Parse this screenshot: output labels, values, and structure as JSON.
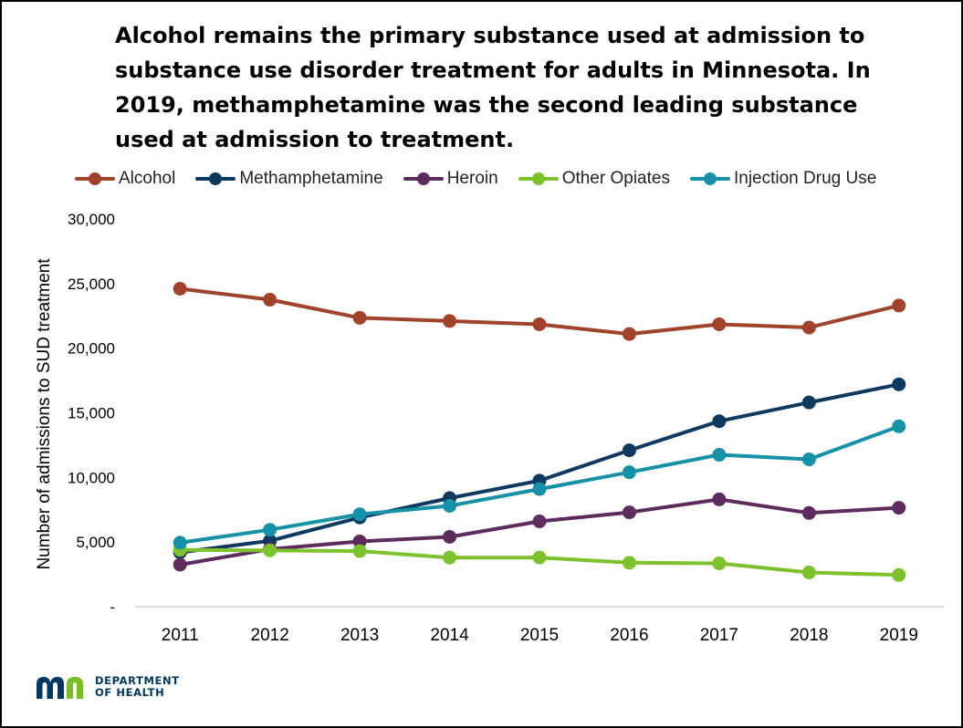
{
  "chart_data": {
    "type": "line",
    "title": "Alcohol remains the primary substance used at admission to substance use disorder treatment for adults in Minnesota. In 2019, methamphetamine was the second leading substance used at admission to treatment.",
    "ylabel": "Number of admissions to SUD treatment",
    "xlabel": "",
    "x": [
      "2011",
      "2012",
      "2013",
      "2014",
      "2015",
      "2016",
      "2017",
      "2018",
      "2019"
    ],
    "ylim": [
      0,
      30000
    ],
    "yticks": [
      0,
      5000,
      10000,
      15000,
      20000,
      25000,
      30000
    ],
    "ytick_labels": [
      "-",
      "5,000",
      "10,000",
      "15,000",
      "20,000",
      "25,000",
      "30,000"
    ],
    "grid": false,
    "legend_position": "top",
    "series": [
      {
        "name": "Alcohol",
        "color": "#A0432A",
        "values": [
          24600,
          23750,
          22350,
          22100,
          21850,
          21100,
          21850,
          21600,
          23300
        ]
      },
      {
        "name": "Methamphetamine",
        "color": "#0E3A5F",
        "values": [
          4200,
          5100,
          6900,
          8400,
          9750,
          12100,
          14350,
          15800,
          17200
        ]
      },
      {
        "name": "Heroin",
        "color": "#5E2B5E",
        "values": [
          3250,
          4450,
          5050,
          5400,
          6600,
          7300,
          8300,
          7250,
          7650
        ]
      },
      {
        "name": "Other Opiates",
        "color": "#7CC22C",
        "values": [
          4400,
          4350,
          4300,
          3800,
          3800,
          3400,
          3350,
          2650,
          2450
        ]
      },
      {
        "name": "Injection Drug Use",
        "color": "#1591A8",
        "values": [
          4950,
          5950,
          7150,
          7800,
          9100,
          10400,
          11750,
          11400,
          13950
        ]
      }
    ]
  },
  "branding": {
    "department_line1": "DEPARTMENT",
    "department_line2": "OF HEALTH",
    "logo_text": "mn",
    "logo_colors": [
      "#003865",
      "#78BE20"
    ]
  }
}
